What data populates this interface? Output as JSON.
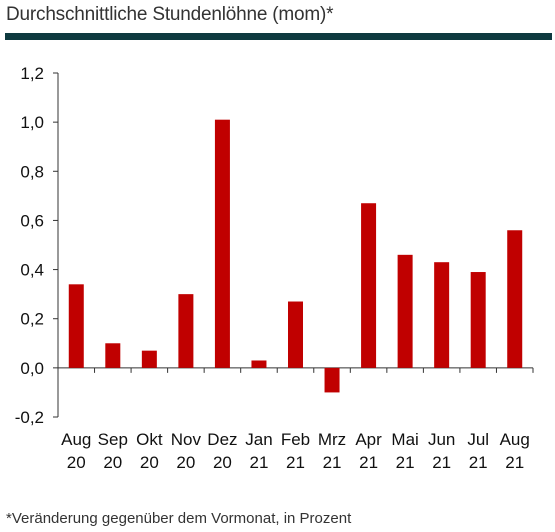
{
  "header": {
    "title": "Durchschnittliche Stundenlöhne (mom)*"
  },
  "footnote": "*Veränderung gegenüber dem Vormonat, in Prozent",
  "chart_data": {
    "type": "bar",
    "title": "Durchschnittliche Stundenlöhne (mom)*",
    "categories": [
      [
        "Aug",
        "20"
      ],
      [
        "Sep",
        "20"
      ],
      [
        "Okt",
        "20"
      ],
      [
        "Nov",
        "20"
      ],
      [
        "Dez",
        "20"
      ],
      [
        "Jan",
        "21"
      ],
      [
        "Feb",
        "21"
      ],
      [
        "Mrz",
        "21"
      ],
      [
        "Apr",
        "21"
      ],
      [
        "Mai",
        "21"
      ],
      [
        "Jun",
        "21"
      ],
      [
        "Jul",
        "21"
      ],
      [
        "Aug",
        "21"
      ]
    ],
    "values": [
      0.34,
      0.1,
      0.07,
      0.3,
      1.01,
      0.03,
      0.27,
      -0.1,
      0.67,
      0.46,
      0.43,
      0.39,
      0.56
    ],
    "ylim": [
      -0.2,
      1.2
    ],
    "yticks": [
      1.2,
      1.0,
      0.8,
      0.6,
      0.4,
      0.2,
      0.0,
      -0.2
    ],
    "ytick_labels": [
      "1,2",
      "1,0",
      "0,8",
      "0,6",
      "0,4",
      "0,2",
      "0,0",
      "-0,2"
    ],
    "xlabel": "",
    "ylabel": "",
    "grid": false,
    "bar_color": "#c00000",
    "axis_color": "#333333"
  }
}
